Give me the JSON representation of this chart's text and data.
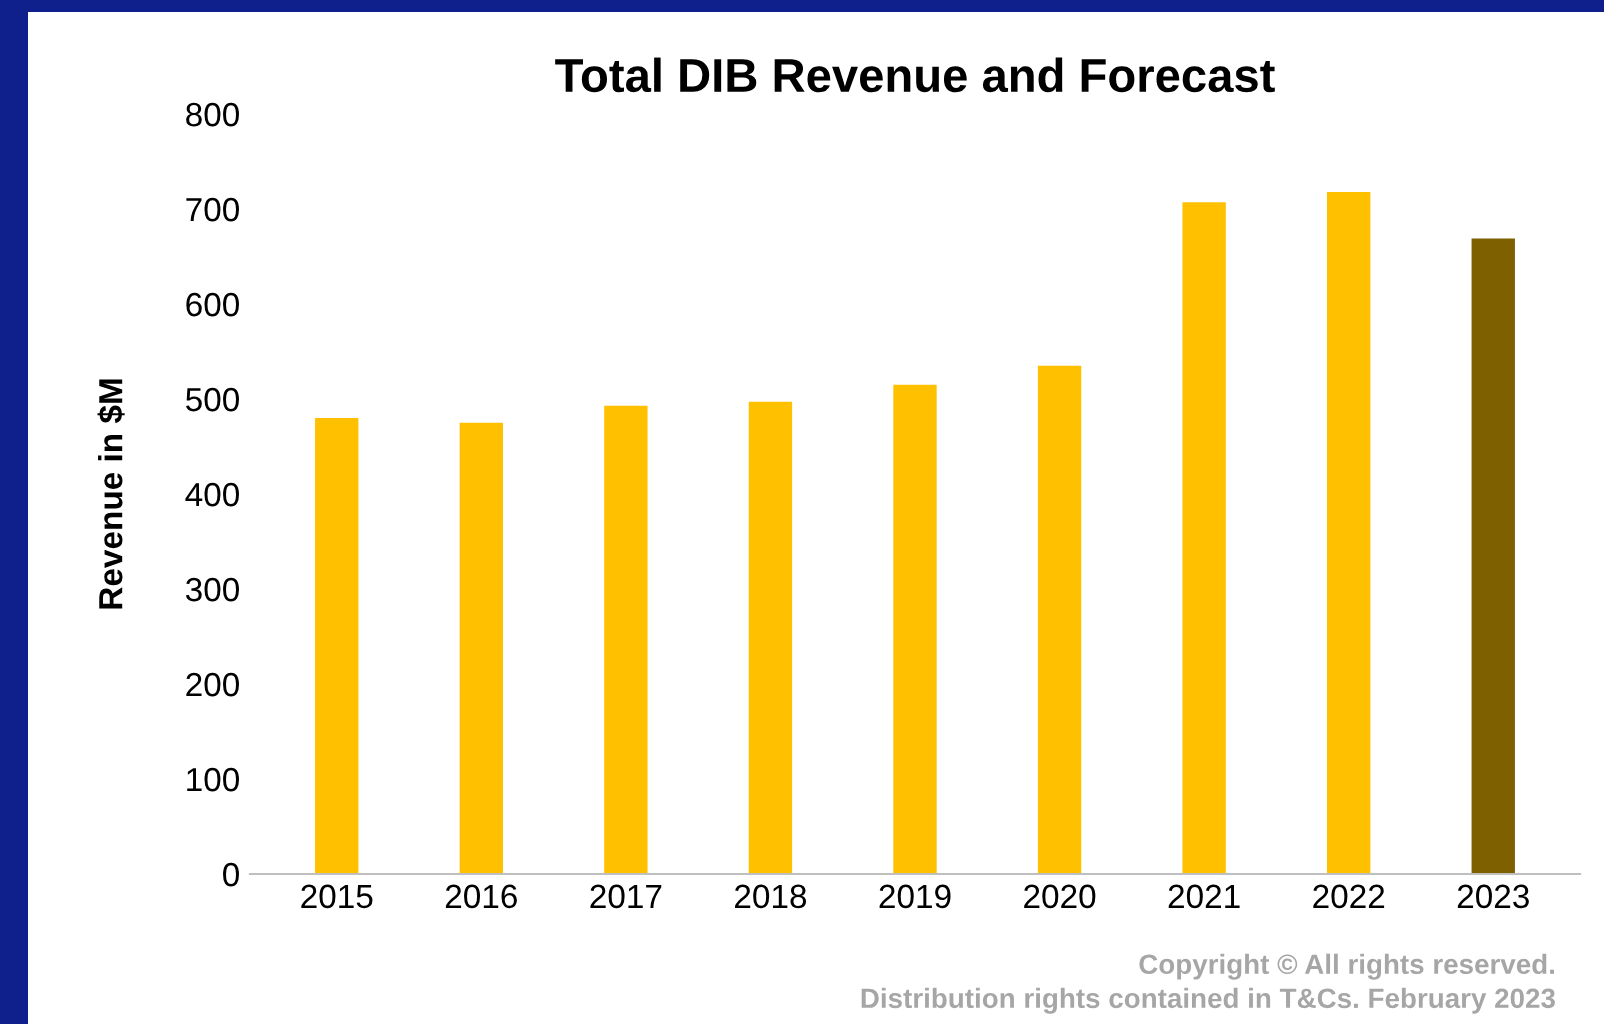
{
  "chart_data": {
    "type": "bar",
    "title": "Total DIB Revenue and Forecast",
    "ylabel": "Revenue in $M",
    "categories": [
      "2015",
      "2016",
      "2017",
      "2018",
      "2019",
      "2020",
      "2021",
      "2022",
      "2023"
    ],
    "values": [
      480,
      475,
      493,
      497,
      515,
      535,
      707,
      718,
      669
    ],
    "colors": [
      "#ffc000",
      "#ffc000",
      "#ffc000",
      "#ffc000",
      "#ffc000",
      "#ffc000",
      "#ffc000",
      "#ffc000",
      "#7f6000"
    ],
    "ylim": [
      0,
      800
    ],
    "yticks": [
      0,
      100,
      200,
      300,
      400,
      500,
      600,
      700,
      800
    ],
    "grid": false,
    "legend": false,
    "annotations": [
      "Copyright © All rights reserved.\nDistribution rights contained in T&Cs. February 2023"
    ]
  }
}
